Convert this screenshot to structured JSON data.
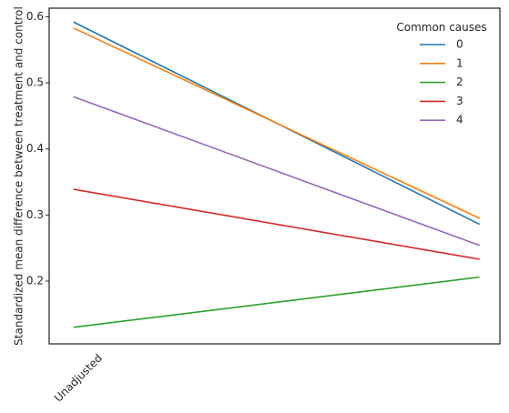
{
  "chart_data": {
    "type": "line",
    "title": "",
    "xlabel": "",
    "ylabel": "Standardized mean difference between treatment and control",
    "x_tick_labels": [
      "Unadjusted"
    ],
    "x": [
      0,
      1
    ],
    "xlim": [
      -0.06,
      1.05
    ],
    "ylim": [
      0.105,
      0.613
    ],
    "yticks": [
      0.2,
      0.3,
      0.4,
      0.5,
      0.6
    ],
    "ytick_labels": [
      "0.2",
      "0.3",
      "0.4",
      "0.5",
      "0.6"
    ],
    "grid": false,
    "legend": {
      "title": "Common causes",
      "placement": "top-right"
    },
    "series": [
      {
        "name": "0",
        "color": "#1f77b4",
        "values": [
          0.592,
          0.286
        ]
      },
      {
        "name": "1",
        "color": "#ff7f0e",
        "values": [
          0.583,
          0.295
        ]
      },
      {
        "name": "2",
        "color": "#2ca02c",
        "values": [
          0.13,
          0.206
        ]
      },
      {
        "name": "3",
        "color": "#d62728",
        "values": [
          0.339,
          0.233
        ]
      },
      {
        "name": "4",
        "color": "#9467bd",
        "values": [
          0.479,
          0.254
        ]
      }
    ]
  }
}
